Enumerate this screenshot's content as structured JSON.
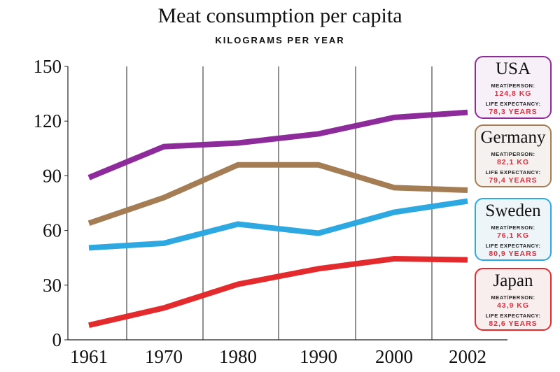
{
  "chart_data": {
    "type": "line",
    "title": "Meat consumption per capita",
    "subtitle": "KILOGRAMS PER YEAR",
    "x": [
      "1961",
      "1970",
      "1980",
      "1990",
      "2000",
      "2002"
    ],
    "ylim": [
      0,
      150
    ],
    "yticks": [
      "0",
      "30",
      "60",
      "90",
      "120",
      "150"
    ],
    "grid": "vertical",
    "series": [
      {
        "name": "USA",
        "color": "#8e2b9b",
        "values": [
          89,
          106,
          108,
          113,
          122,
          124.8
        ],
        "meat_label": "MEAT/PERSON:",
        "meat": "124,8 KG",
        "life_label": "LIFE EXPECTANCY:",
        "life": "78,3 YEARS",
        "box_bg": "#f7f0f8"
      },
      {
        "name": "Germany",
        "color": "#a57d55",
        "values": [
          64,
          78,
          96,
          96,
          83.5,
          82.1
        ],
        "meat_label": "MEAT/PERSON:",
        "meat": "82,1 KG",
        "life_label": "LIFE EXPECTANCY:",
        "life": "79,4 YEARS",
        "box_bg": "#f4f1ee"
      },
      {
        "name": "Sweden",
        "color": "#2ea8e0",
        "values": [
          50.5,
          53,
          63.5,
          58.5,
          70,
          76.1
        ],
        "meat_label": "MEAT/PERSON:",
        "meat": "76,1 KG",
        "life_label": "LIFE EXPECTANCY:",
        "life": "80,9 YEARS",
        "box_bg": "#eef5f9"
      },
      {
        "name": "Japan",
        "color": "#e32b2e",
        "values": [
          8,
          17.5,
          30.5,
          39,
          44.5,
          43.9
        ],
        "meat_label": "MEAT/PERSON:",
        "meat": "43,9 KG",
        "life_label": "LIFE EXPECTANCY:",
        "life": "82,6 YEARS",
        "box_bg": "#f9eeee"
      }
    ]
  }
}
